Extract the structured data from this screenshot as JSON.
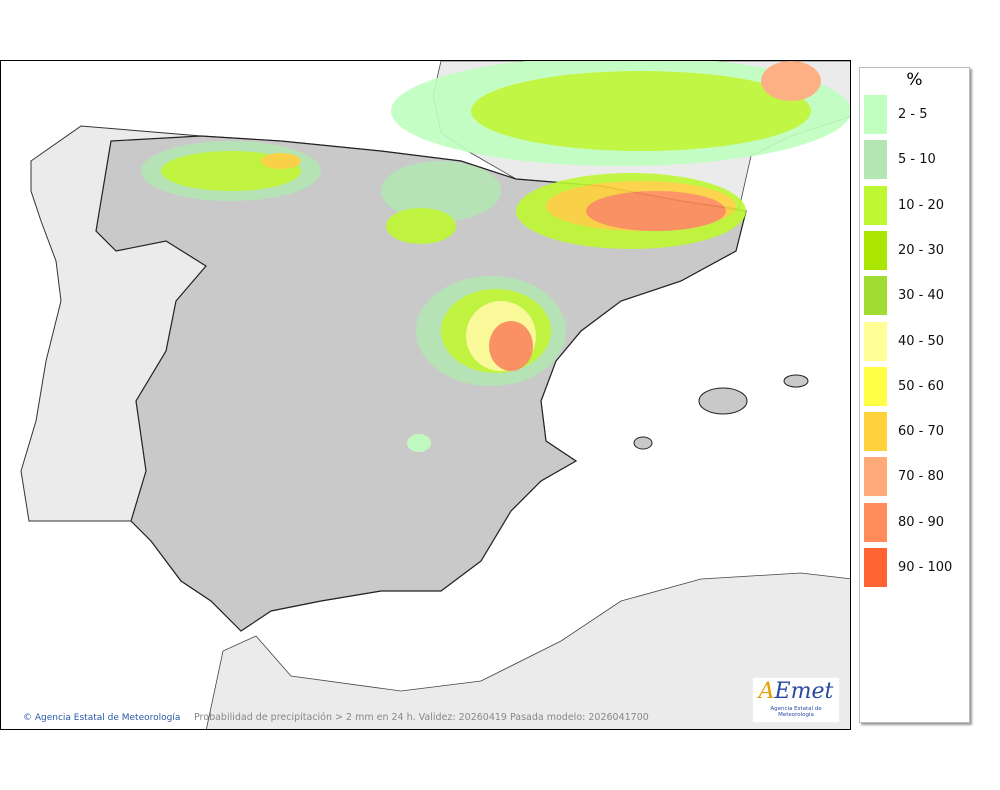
{
  "map": {
    "credit": "Agencia Estatal de Meteorología",
    "copyright_icon": "copyright-icon",
    "caption": "Probabilidad de precipitación > 2 mm en 24 h. Validez: 20260419 Pasada modelo: 2026041700",
    "logo_text": "AEmet",
    "logo_subtitle": "Agencia Estatal de Meteorología",
    "colors": {
      "sea": "#ffffff",
      "land_spain": "#c9c9c9",
      "land_other": "#ebebeb",
      "borders": "#222222"
    }
  },
  "legend": {
    "unit": "%",
    "items": [
      {
        "label": "2 - 5",
        "color": "#c0ffc0"
      },
      {
        "label": "5 - 10",
        "color": "#b4e6b4"
      },
      {
        "label": "10 - 20",
        "color": "#bef832"
      },
      {
        "label": "20 - 30",
        "color": "#aae600"
      },
      {
        "label": "30 - 40",
        "color": "#a0dc32"
      },
      {
        "label": "40 - 50",
        "color": "#ffff96"
      },
      {
        "label": "50 - 60",
        "color": "#ffff46"
      },
      {
        "label": "60 - 70",
        "color": "#ffd23c"
      },
      {
        "label": "70 - 80",
        "color": "#ffaa78"
      },
      {
        "label": "80 - 90",
        "color": "#ff8c5a"
      },
      {
        "label": "90 - 100",
        "color": "#ff6432"
      }
    ]
  }
}
